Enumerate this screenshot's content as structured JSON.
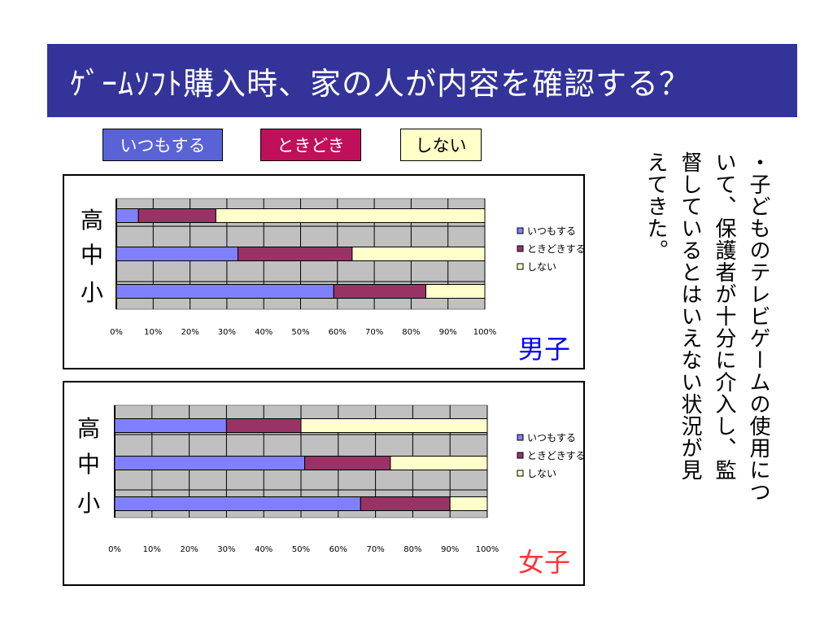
{
  "slide": {
    "title": "ｹﾞｰﾑｿﾌﾄ購入時、家の人が内容を確認する？",
    "key_labels": [
      "いつもする",
      "ときどき",
      "しない"
    ],
    "note_lines": [
      "・子どものテレビゲームの使用につ",
      "いて、保護者が十分に介入し、監",
      "督しているとはいえない状況が見",
      "えてきた。"
    ]
  },
  "colors": {
    "always": "#8080ff",
    "sometimes": "#993366",
    "never": "#ffffcc",
    "plot_bg": "#c0c0c0",
    "boys_label": "#0000ff",
    "girls_label": "#ff3333"
  },
  "chart_data": [
    {
      "type": "bar",
      "orientation": "horizontal",
      "stacked": "percent",
      "title": "男子",
      "categories": [
        "高",
        "中",
        "小"
      ],
      "series": [
        {
          "name": "いつもする",
          "values": [
            6,
            33,
            59
          ]
        },
        {
          "name": "ときどきする",
          "values": [
            21,
            31,
            25
          ]
        },
        {
          "name": "しない",
          "values": [
            73,
            36,
            16
          ]
        }
      ],
      "xticks": [
        "0%",
        "10%",
        "20%",
        "30%",
        "40%",
        "50%",
        "60%",
        "70%",
        "80%",
        "90%",
        "100%"
      ],
      "xlim": [
        0,
        100
      ],
      "grid": true,
      "legend": "right"
    },
    {
      "type": "bar",
      "orientation": "horizontal",
      "stacked": "percent",
      "title": "女子",
      "categories": [
        "高",
        "中",
        "小"
      ],
      "series": [
        {
          "name": "いつもする",
          "values": [
            30,
            51,
            66
          ]
        },
        {
          "name": "ときどきする",
          "values": [
            20,
            23,
            24
          ]
        },
        {
          "name": "しない",
          "values": [
            50,
            26,
            10
          ]
        }
      ],
      "xticks": [
        "0%",
        "10%",
        "20%",
        "30%",
        "40%",
        "50%",
        "60%",
        "70%",
        "80%",
        "90%",
        "100%"
      ],
      "xlim": [
        0,
        100
      ],
      "grid": true,
      "legend": "right"
    }
  ]
}
